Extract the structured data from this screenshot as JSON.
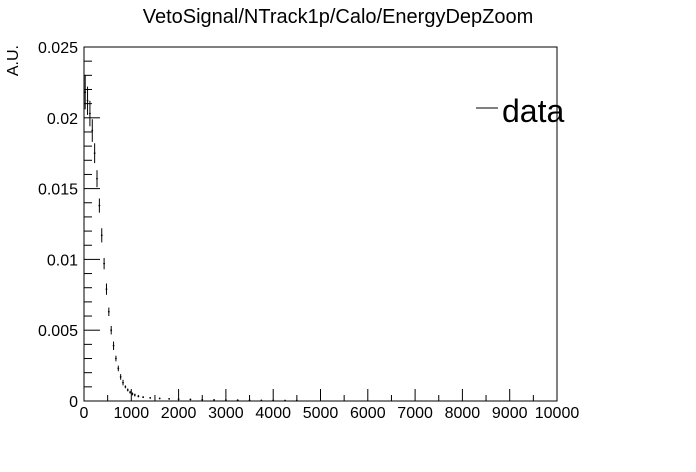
{
  "chart_data": {
    "type": "scatter",
    "title": "VetoSignal/NTrack1p/Calo/EnergyDepZoom",
    "xlabel": "",
    "ylabel": "A.U.",
    "xlim": [
      0,
      10000
    ],
    "ylim": [
      0,
      0.025
    ],
    "x_ticks": [
      0,
      1000,
      2000,
      3000,
      4000,
      5000,
      6000,
      7000,
      8000,
      9000,
      10000
    ],
    "x_tick_labels": [
      "0",
      "1000",
      "2000",
      "3000",
      "4000",
      "5000",
      "6000",
      "7000",
      "8000",
      "9000",
      "10000"
    ],
    "y_ticks": [
      0,
      0.005,
      0.01,
      0.015,
      0.02,
      0.025
    ],
    "y_tick_labels": [
      "0",
      "0.005",
      "0.01",
      "0.015",
      "0.02",
      "0.025"
    ],
    "grid": false,
    "legend": {
      "position": "top-right",
      "entries": [
        "data"
      ]
    },
    "series": [
      {
        "name": "data",
        "color": "#000000",
        "x": [
          25,
          75,
          125,
          175,
          225,
          275,
          325,
          375,
          425,
          475,
          525,
          575,
          625,
          675,
          725,
          775,
          825,
          875,
          925,
          975,
          1025,
          1075,
          1150,
          1250,
          1400,
          1600,
          1800,
          2000,
          2250,
          2500,
          2750,
          3000,
          3250,
          3500,
          3750,
          4000,
          4250,
          4500
        ],
        "y": [
          0.0218,
          0.0212,
          0.0203,
          0.0191,
          0.0175,
          0.0157,
          0.0138,
          0.0117,
          0.0097,
          0.0079,
          0.0063,
          0.005,
          0.0039,
          0.003,
          0.0023,
          0.0017,
          0.0013,
          0.001,
          0.00078,
          0.00062,
          0.0005,
          0.00042,
          0.00034,
          0.00027,
          0.00022,
          0.00018,
          0.00015,
          0.00013,
          0.00011,
          9e-05,
          8e-05,
          7e-05,
          6e-05,
          5e-05,
          4e-05,
          4e-05,
          3e-05,
          3e-05
        ],
        "yerr": [
          0.0012,
          0.001,
          0.0009,
          0.0008,
          0.0007,
          0.0006,
          0.0005,
          0.0005,
          0.0004,
          0.0004,
          0.0003,
          0.0003,
          0.0003,
          0.0002,
          0.0002,
          0.0002,
          0.0002,
          0.0001,
          0.0001,
          0.0001,
          0.0001,
          0.0001,
          8e-05,
          6e-05,
          5e-05,
          4e-05,
          4e-05,
          3e-05,
          3e-05,
          3e-05,
          2e-05,
          2e-05,
          2e-05,
          2e-05,
          2e-05,
          2e-05,
          2e-05,
          2e-05
        ]
      }
    ]
  }
}
